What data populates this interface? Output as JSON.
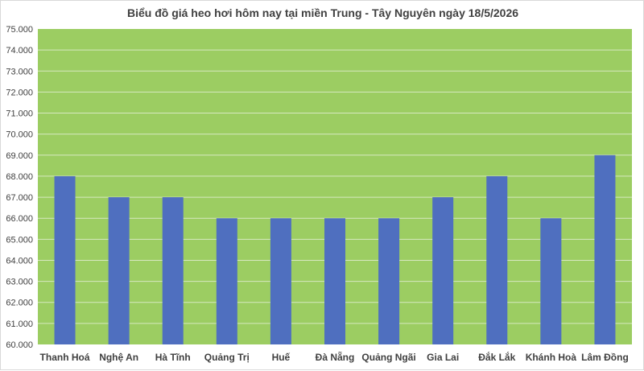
{
  "colors": {
    "plot_background": "#9ccd62",
    "bar": "#4f6fbf",
    "gridline": "#d6e8c0",
    "text": "#404040"
  },
  "chart_data": {
    "type": "bar",
    "title": "Biểu đồ giá heo hơi hôm nay tại miền Trung - Tây Nguyên ngày 18/5/2026",
    "xlabel": "",
    "ylabel": "",
    "categories": [
      "Thanh Hoá",
      "Nghệ An",
      "Hà Tĩnh",
      "Quảng Trị",
      "Huế",
      "Đà Nẵng",
      "Quảng Ngãi",
      "Gia Lai",
      "Đắk Lắk",
      "Khánh Hoà",
      "Lâm Đồng"
    ],
    "values": [
      68000,
      67000,
      67000,
      66000,
      66000,
      66000,
      66000,
      67000,
      68000,
      66000,
      69000
    ],
    "ylim": [
      60000,
      75000
    ],
    "y_ticks": [
      "60.000",
      "61.000",
      "62.000",
      "63.000",
      "64.000",
      "65.000",
      "66.000",
      "67.000",
      "68.000",
      "69.000",
      "70.000",
      "71.000",
      "72.000",
      "73.000",
      "74.000",
      "75.000"
    ],
    "grid": true,
    "legend": "none"
  }
}
